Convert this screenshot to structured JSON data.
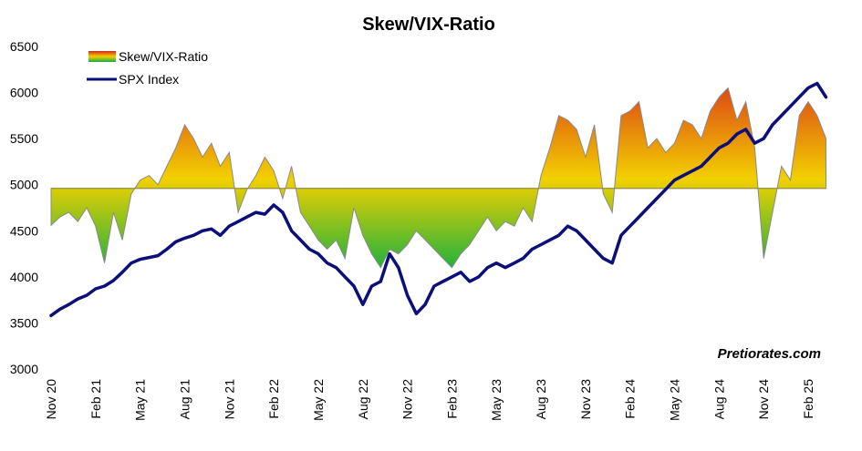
{
  "chart_data": {
    "type": "area",
    "title": "Skew/VIX-Ratio",
    "xlabel": "",
    "ylabel": "",
    "ylim": [
      3000,
      6500
    ],
    "yticks": [
      3000,
      3500,
      4000,
      4500,
      5000,
      5500,
      6000,
      6500
    ],
    "baseline": 4960,
    "categories": [
      "Nov 20",
      "Feb 21",
      "May 21",
      "Aug 21",
      "Nov 21",
      "Feb 22",
      "May 22",
      "Aug 22",
      "Nov 22",
      "Feb 23",
      "May 23",
      "Aug 23",
      "Nov 23",
      "Feb 24",
      "May 24",
      "Aug 24",
      "Nov 24",
      "Feb 25"
    ],
    "legend_position": "top-left",
    "grid": false,
    "watermark": "Pretiorates.com",
    "colors": {
      "spx": "#0a0f7a",
      "area_low": "#15b040",
      "area_mid": "#f2d000",
      "area_high": "#d8261a",
      "area_edge": "#8a8a8a"
    },
    "series": [
      {
        "name": "Skew/VIX-Ratio",
        "kind": "area",
        "x": [
          0,
          0.2,
          0.4,
          0.6,
          0.8,
          1.0,
          1.2,
          1.4,
          1.6,
          1.8,
          2.0,
          2.2,
          2.4,
          2.6,
          2.8,
          3.0,
          3.2,
          3.4,
          3.6,
          3.8,
          4.0,
          4.2,
          4.4,
          4.6,
          4.8,
          5.0,
          5.2,
          5.4,
          5.6,
          5.8,
          6.0,
          6.2,
          6.4,
          6.6,
          6.8,
          7.0,
          7.2,
          7.4,
          7.6,
          7.8,
          8.0,
          8.2,
          8.4,
          8.6,
          8.8,
          9.0,
          9.2,
          9.4,
          9.6,
          9.8,
          10.0,
          10.2,
          10.4,
          10.6,
          10.8,
          11.0,
          11.2,
          11.4,
          11.6,
          11.8,
          12.0,
          12.2,
          12.4,
          12.6,
          12.8,
          13.0,
          13.2,
          13.4,
          13.6,
          13.8,
          14.0,
          14.2,
          14.4,
          14.6,
          14.8,
          15.0,
          15.2,
          15.4,
          15.6,
          15.8,
          16.0,
          16.2,
          16.4,
          16.6,
          16.8,
          17.0,
          17.2,
          17.4
        ],
        "values": [
          4560,
          4650,
          4700,
          4600,
          4750,
          4550,
          4150,
          4700,
          4400,
          4900,
          5050,
          5100,
          5000,
          5200,
          5400,
          5650,
          5500,
          5300,
          5450,
          5200,
          5350,
          4700,
          4950,
          5100,
          5300,
          5150,
          4850,
          5200,
          4700,
          4550,
          4400,
          4300,
          4400,
          4200,
          4750,
          4450,
          4250,
          4100,
          4300,
          4250,
          4350,
          4500,
          4400,
          4300,
          4200,
          4100,
          4250,
          4350,
          4500,
          4650,
          4500,
          4600,
          4550,
          4750,
          4600,
          5100,
          5400,
          5750,
          5700,
          5600,
          5300,
          5650,
          4900,
          4700,
          5750,
          5800,
          5900,
          5400,
          5500,
          5350,
          5450,
          5700,
          5650,
          5500,
          5800,
          5950,
          6050,
          5700,
          5900,
          5400,
          4200,
          4700,
          5200,
          5050,
          5750,
          5900,
          5750,
          5500
        ]
      },
      {
        "name": "SPX Index",
        "kind": "line",
        "x": [
          0,
          0.2,
          0.4,
          0.6,
          0.8,
          1.0,
          1.2,
          1.4,
          1.6,
          1.8,
          2.0,
          2.2,
          2.4,
          2.6,
          2.8,
          3.0,
          3.2,
          3.4,
          3.6,
          3.8,
          4.0,
          4.2,
          4.4,
          4.6,
          4.8,
          5.0,
          5.2,
          5.4,
          5.6,
          5.8,
          6.0,
          6.2,
          6.4,
          6.6,
          6.8,
          7.0,
          7.2,
          7.4,
          7.6,
          7.8,
          8.0,
          8.2,
          8.4,
          8.6,
          8.8,
          9.0,
          9.2,
          9.4,
          9.6,
          9.8,
          10.0,
          10.2,
          10.4,
          10.6,
          10.8,
          11.0,
          11.2,
          11.4,
          11.6,
          11.8,
          12.0,
          12.2,
          12.4,
          12.6,
          12.8,
          13.0,
          13.2,
          13.4,
          13.6,
          13.8,
          14.0,
          14.2,
          14.4,
          14.6,
          14.8,
          15.0,
          15.2,
          15.4,
          15.6,
          15.8,
          16.0,
          16.2,
          16.4,
          16.6,
          16.8,
          17.0,
          17.2,
          17.4
        ],
        "values": [
          3580,
          3650,
          3700,
          3760,
          3800,
          3870,
          3900,
          3960,
          4050,
          4150,
          4190,
          4210,
          4230,
          4300,
          4380,
          4420,
          4450,
          4500,
          4520,
          4450,
          4550,
          4600,
          4650,
          4700,
          4680,
          4780,
          4700,
          4500,
          4400,
          4300,
          4250,
          4150,
          4100,
          4000,
          3900,
          3700,
          3900,
          3950,
          4250,
          4100,
          3800,
          3600,
          3700,
          3900,
          3950,
          4000,
          4050,
          3950,
          4000,
          4100,
          4150,
          4100,
          4150,
          4200,
          4300,
          4350,
          4400,
          4450,
          4550,
          4500,
          4400,
          4300,
          4200,
          4150,
          4450,
          4550,
          4650,
          4750,
          4850,
          4950,
          5050,
          5100,
          5150,
          5200,
          5300,
          5400,
          5450,
          5550,
          5600,
          5450,
          5500,
          5650,
          5750,
          5850,
          5950,
          6050,
          6100,
          5950
        ]
      }
    ]
  }
}
